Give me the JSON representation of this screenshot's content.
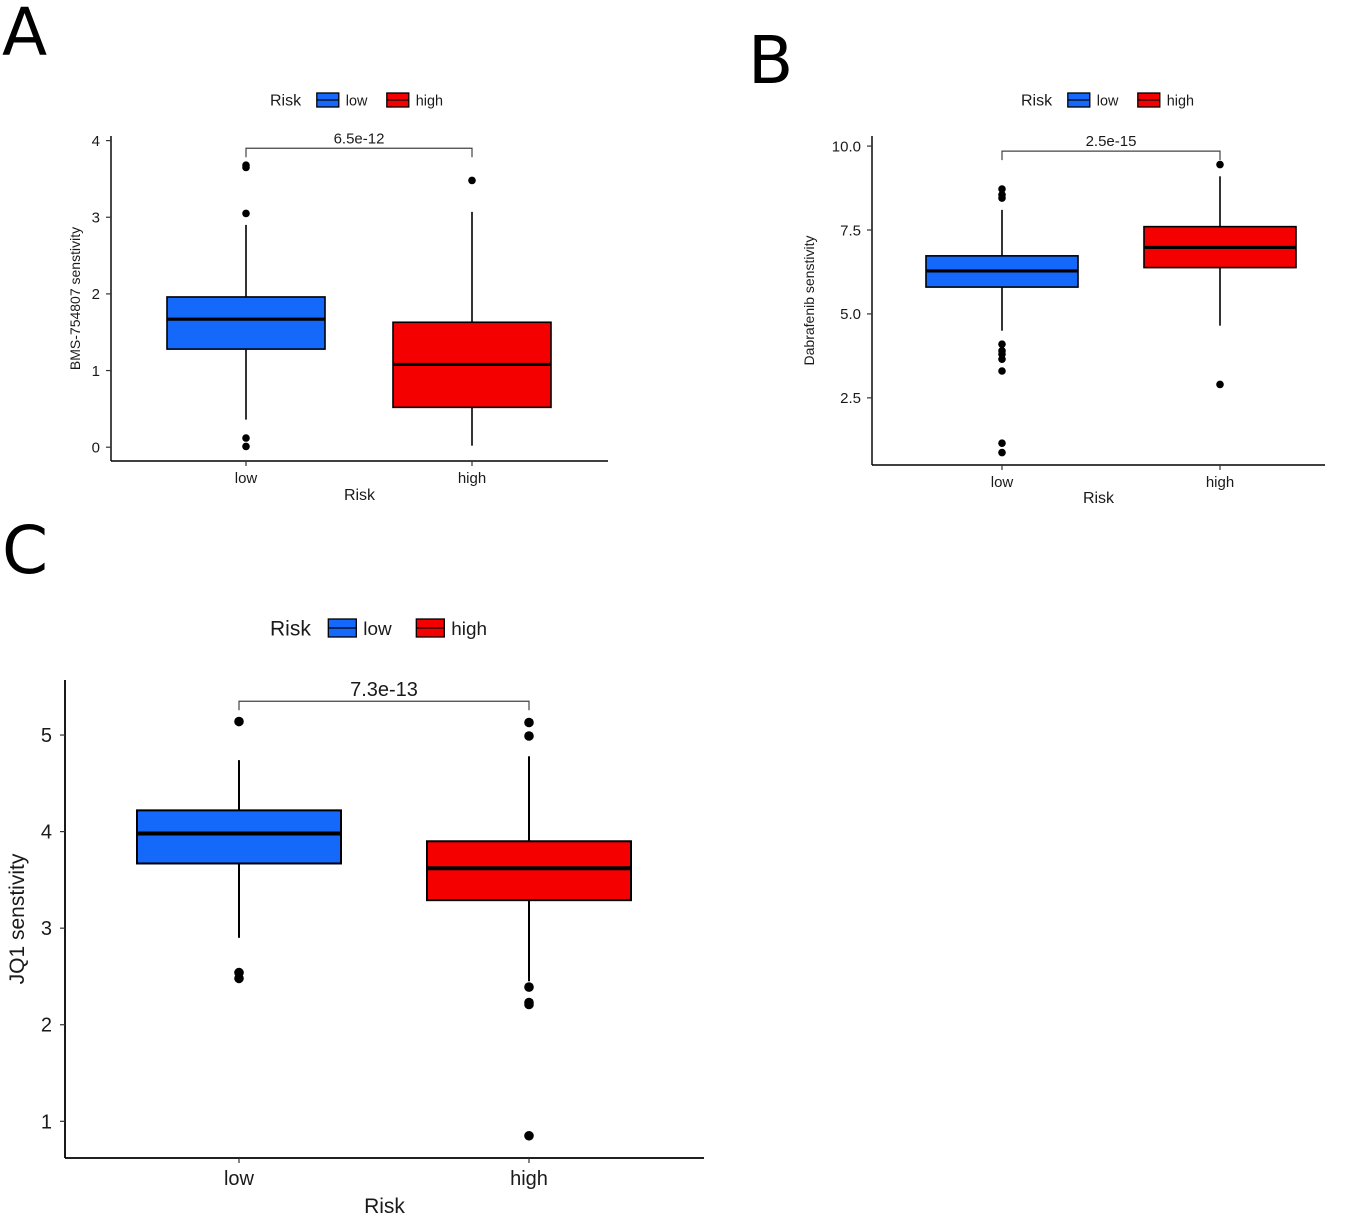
{
  "panels": [
    {
      "letter": "A",
      "legend_title": "Risk",
      "chart_data": {
        "type": "boxplot",
        "ylabel": "BMS-754807 senstivity",
        "xlabel": "Risk",
        "categories": [
          "low",
          "high"
        ],
        "colors": [
          "#1469FB",
          "#F40000"
        ],
        "ylim": [
          -0.18,
          4.06
        ],
        "yticks": [
          0,
          1,
          2,
          3,
          4
        ],
        "ytick_labels": [
          "0",
          "1",
          "2",
          "3",
          "4"
        ],
        "pvalue": "6.5e-12",
        "bracket_y": 3.9,
        "boxes": [
          {
            "name": "low",
            "q1": 1.28,
            "median": 1.67,
            "q3": 1.96,
            "whisker_low": 0.36,
            "whisker_high": 2.9,
            "outliers": [
              3.68,
              3.65,
              3.05,
              0.12,
              0.01
            ]
          },
          {
            "name": "high",
            "q1": 0.52,
            "median": 1.08,
            "q3": 1.63,
            "whisker_low": 0.02,
            "whisker_high": 3.07,
            "outliers": [
              3.48
            ]
          }
        ]
      }
    },
    {
      "letter": "B",
      "legend_title": "Risk",
      "chart_data": {
        "type": "boxplot",
        "ylabel": "Dabrafenib senstivity",
        "xlabel": "Risk",
        "categories": [
          "low",
          "high"
        ],
        "colors": [
          "#1469FB",
          "#F40000"
        ],
        "ylim": [
          0.5,
          10.3
        ],
        "yticks": [
          2.5,
          5.0,
          7.5,
          10.0
        ],
        "ytick_labels": [
          "2.5",
          "5.0",
          "7.5",
          "10.0"
        ],
        "pvalue": "2.5e-15",
        "bracket_y": 9.85,
        "boxes": [
          {
            "name": "low",
            "q1": 5.8,
            "median": 6.28,
            "q3": 6.73,
            "whisker_low": 4.5,
            "whisker_high": 8.1,
            "outliers": [
              8.72,
              8.55,
              8.45,
              4.1,
              3.9,
              3.8,
              3.65,
              3.3,
              1.15,
              0.87
            ]
          },
          {
            "name": "high",
            "q1": 6.38,
            "median": 6.98,
            "q3": 7.6,
            "whisker_low": 4.65,
            "whisker_high": 9.1,
            "outliers": [
              9.45,
              2.9
            ]
          }
        ]
      }
    },
    {
      "letter": "C",
      "legend_title": "Risk",
      "chart_data": {
        "type": "boxplot",
        "ylabel": "JQ1 senstivity",
        "xlabel": "Risk",
        "categories": [
          "low",
          "high"
        ],
        "colors": [
          "#1469FB",
          "#F40000"
        ],
        "ylim": [
          0.62,
          5.57
        ],
        "yticks": [
          1,
          2,
          3,
          4,
          5
        ],
        "ytick_labels": [
          "1",
          "2",
          "3",
          "4",
          "5"
        ],
        "pvalue": "7.3e-13",
        "bracket_y": 5.35,
        "boxes": [
          {
            "name": "low",
            "q1": 3.67,
            "median": 3.98,
            "q3": 4.22,
            "whisker_low": 2.9,
            "whisker_high": 4.74,
            "outliers": [
              5.14,
              2.54,
              2.48
            ]
          },
          {
            "name": "high",
            "q1": 3.29,
            "median": 3.62,
            "q3": 3.9,
            "whisker_low": 2.45,
            "whisker_high": 4.78,
            "outliers": [
              5.13,
              4.99,
              2.39,
              2.23,
              2.21,
              0.85
            ]
          }
        ]
      }
    }
  ]
}
